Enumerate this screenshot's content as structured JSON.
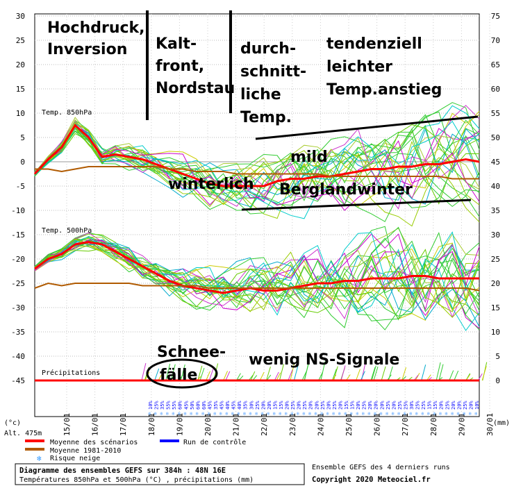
{
  "chart_data": {
    "type": "line",
    "x": [
      "15/01",
      "16/01",
      "17/01",
      "18/01",
      "19/01",
      "20/01",
      "21/01",
      "22/01",
      "23/01",
      "24/01",
      "25/01",
      "26/01",
      "27/01",
      "28/01",
      "29/01",
      "30/01"
    ],
    "y_left_ticks": [
      "30",
      "25",
      "20",
      "15",
      "10",
      "5",
      "0",
      "-5",
      "-10",
      "-15",
      "-20",
      "-25",
      "-30",
      "-35",
      "-40",
      "-45"
    ],
    "y_right_ticks": [
      "75",
      "70",
      "65",
      "60",
      "55",
      "50",
      "45",
      "40",
      "35",
      "30",
      "25",
      "20",
      "15",
      "10",
      "5",
      "0"
    ],
    "left_unit": "(°c)",
    "right_unit": "(mm)",
    "altitude": "Alt. 475m",
    "panels": {
      "t850": "Temp. 850hPa",
      "t500": "Temp. 500hPa",
      "precip": "Précipitations"
    },
    "series": [
      {
        "name": "Moyenne des scénarios",
        "color": "#ff0000",
        "t850": [
          -2.5,
          0.5,
          3,
          7.5,
          5,
          1,
          1.5,
          1,
          0.5,
          -0.5,
          -1.5,
          -2.5,
          -3.5,
          -4.5,
          -5,
          -5,
          -5,
          -5,
          -4,
          -3.5,
          -3.5,
          -3,
          -3,
          -2.5,
          -2,
          -1.5,
          -1.5,
          -1,
          -1,
          -0.5,
          -0.5,
          0,
          0.5,
          0
        ],
        "t500": [
          -22,
          -20,
          -19,
          -17,
          -16.5,
          -17,
          -18.5,
          -20,
          -21.5,
          -23,
          -24.5,
          -25.5,
          -26,
          -26.5,
          -27,
          -26.5,
          -26,
          -26.5,
          -26.5,
          -26,
          -25.5,
          -25,
          -25,
          -24.5,
          -24.5,
          -24,
          -24,
          -24,
          -23.5,
          -23.5,
          -24,
          -24,
          -24,
          -24
        ]
      },
      {
        "name": "Moyenne 1981-2010",
        "color": "#b05a00",
        "t850": [
          -1.5,
          -1.5,
          -2,
          -1.5,
          -1,
          -1,
          -1,
          -1,
          -1,
          -1,
          -1.5,
          -1.5,
          -2,
          -2,
          -2,
          -2.5,
          -2.5,
          -2.5,
          -2.5,
          -2.5,
          -2.5,
          -2.5,
          -3,
          -3,
          -3,
          -3,
          -3,
          -3,
          -3,
          -3,
          -3,
          -3.5,
          -3.5,
          -3.5
        ],
        "t500": [
          -26,
          -25,
          -25.5,
          -25,
          -25,
          -25,
          -25,
          -25,
          -25.5,
          -25.5,
          -25.5,
          -25.5,
          -25.5,
          -26,
          -26,
          -26,
          -26,
          -26,
          -26,
          -26,
          -26,
          -26,
          -26,
          -26,
          -26,
          -26,
          -26,
          -26,
          -26,
          -26,
          -26,
          -26,
          -26,
          -26.5
        ]
      }
    ],
    "control_run_label": "Run de contrôle",
    "snow_risk_label": "Risque neige",
    "snow_risk_pct": [
      "10%",
      "25%",
      "35%",
      "55%",
      "55%",
      "60%",
      "45%",
      "50%",
      "60%",
      "60%",
      "45%",
      "35%",
      "45%",
      "40%",
      "45%",
      "40%",
      "35%",
      "30%",
      "25%",
      "20%",
      "20%",
      "15%",
      "15%",
      "20%",
      "25%",
      "20%",
      "25%",
      "20%",
      "20%",
      "25%",
      "20%",
      "25%",
      "20%",
      "15%",
      "15%",
      "20%",
      "25%",
      "20%",
      "20%",
      "20%",
      "25%",
      "20%",
      "25%",
      "25%",
      "30%",
      "25%",
      "25%",
      "15%",
      "15%",
      "20%",
      "25%",
      "20%",
      "20%",
      "25%",
      "20%",
      "10%"
    ],
    "annotations": {
      "hochdruck": [
        "Hochdruck,",
        "Inversion"
      ],
      "kaltfront": [
        "Kalt-",
        "front,",
        "Nordstau"
      ],
      "durchschnitt": [
        "durch-",
        "schnitt-",
        "liche",
        "Temp."
      ],
      "tendenziell": [
        "tendenziell",
        "leichter",
        "Temp.anstieg"
      ],
      "mild": "mild",
      "winterlich": "winterlich",
      "berglandwinter": "Berglandwinter",
      "schneefalle": [
        "Schnee-",
        "fälle"
      ],
      "wenig": "wenig NS-Signale"
    },
    "footer": {
      "title": "Diagramme des ensembles GEFS sur 384h : 48N 16E",
      "subtitle": "Températures 850hPa et 500hPa (°C) , précipitations (mm)",
      "runs": "Ensemble GEFS des 4 derniers runs",
      "copyright": "Copyright 2020 Meteociel.fr"
    },
    "ylim_left": [
      -45,
      30
    ],
    "ylim_right": [
      0,
      75
    ],
    "grid": true,
    "legend_position": "bottom-left"
  }
}
